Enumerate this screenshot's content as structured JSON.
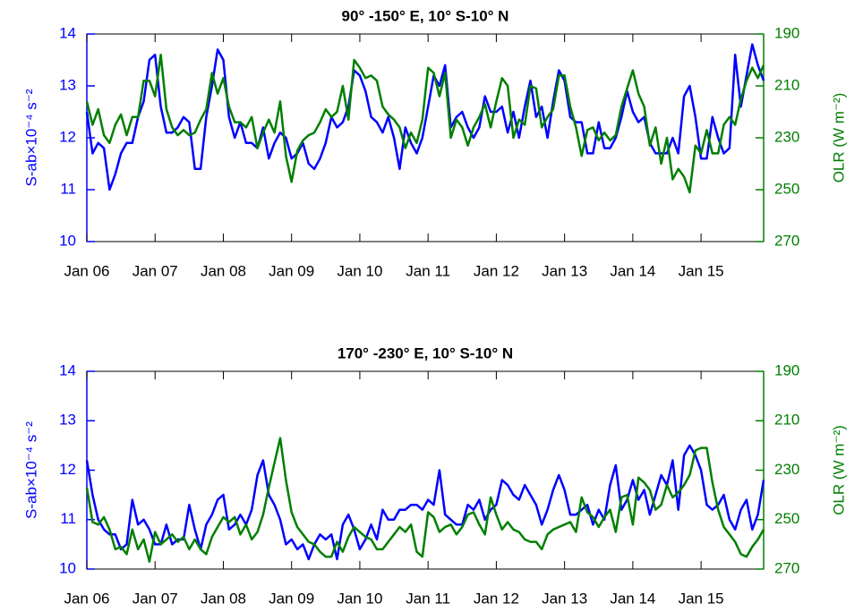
{
  "chart_data": [
    {
      "type": "line",
      "title": "90° -150° E, 10° S-10° N",
      "ylabel": "S-ab×10⁻⁴ s⁻²",
      "y2label": "OLR (W m⁻²)",
      "categories": [
        "Jan 06",
        null,
        null,
        null,
        null,
        null,
        null,
        null,
        null,
        null,
        null,
        null,
        "Jan 07",
        null,
        null,
        null,
        null,
        null,
        null,
        null,
        null,
        null,
        null,
        null,
        "Jan 08",
        null,
        null,
        null,
        null,
        null,
        null,
        null,
        null,
        null,
        null,
        null,
        "Jan 09",
        null,
        null,
        null,
        null,
        null,
        null,
        null,
        null,
        null,
        null,
        null,
        "Jan 10",
        null,
        null,
        null,
        null,
        null,
        null,
        null,
        null,
        null,
        null,
        null,
        "Jan 11",
        null,
        null,
        null,
        null,
        null,
        null,
        null,
        null,
        null,
        null,
        null,
        "Jan 12",
        null,
        null,
        null,
        null,
        null,
        null,
        null,
        null,
        null,
        null,
        null,
        "Jan 13",
        null,
        null,
        null,
        null,
        null,
        null,
        null,
        null,
        null,
        null,
        null,
        "Jan 14",
        null,
        null,
        null,
        null,
        null,
        null,
        null,
        null,
        null,
        null,
        null,
        "Jan 15",
        null,
        null,
        null,
        null,
        null,
        null,
        null,
        null,
        null,
        null,
        null
      ],
      "ylim": [
        10,
        14
      ],
      "yticks": [
        10,
        11,
        12,
        13,
        14
      ],
      "y2lim": [
        270,
        190
      ],
      "y2ticks": [
        190,
        210,
        230,
        250,
        270
      ],
      "series": [
        {
          "name": "S-ab",
          "color": "#0000ff",
          "values": [
            12.5,
            11.7,
            11.9,
            11.8,
            11.0,
            11.3,
            11.7,
            11.9,
            11.9,
            12.4,
            12.7,
            13.5,
            13.6,
            12.6,
            12.1,
            12.1,
            12.2,
            12.4,
            12.3,
            11.4,
            11.4,
            12.4,
            13.0,
            13.7,
            13.5,
            12.4,
            12.0,
            12.3,
            11.9,
            11.9,
            11.8,
            12.2,
            11.6,
            11.9,
            12.1,
            12.0,
            11.6,
            11.7,
            11.9,
            11.5,
            11.4,
            11.6,
            11.9,
            12.4,
            12.2,
            12.3,
            12.6,
            13.3,
            13.2,
            12.9,
            12.4,
            12.3,
            12.1,
            12.4,
            12.0,
            11.4,
            12.2,
            11.9,
            11.7,
            12.0,
            12.6,
            13.2,
            13.0,
            13.4,
            12.2,
            12.4,
            12.5,
            12.2,
            12.0,
            12.2,
            12.8,
            12.5,
            12.5,
            12.6,
            12.1,
            12.5,
            12.0,
            12.6,
            13.1,
            12.4,
            12.6,
            12.0,
            12.7,
            13.3,
            13.1,
            12.4,
            12.3,
            12.3,
            11.7,
            11.7,
            12.3,
            11.8,
            11.8,
            12.0,
            12.4,
            12.9,
            12.5,
            12.3,
            12.4,
            11.9,
            11.7,
            11.7,
            11.7,
            12.0,
            11.7,
            12.8,
            13.0,
            12.4,
            11.6,
            11.6,
            12.4,
            12.0,
            11.7,
            11.8,
            13.6,
            12.6,
            13.2,
            13.8,
            13.4,
            13.1
          ]
        },
        {
          "name": "OLR",
          "color": "#007f00",
          "axis": "y2",
          "values": [
            216,
            225,
            219,
            229,
            232,
            225,
            221,
            229,
            222,
            222,
            208,
            208,
            214,
            198,
            219,
            226,
            229,
            227,
            229,
            228,
            223,
            219,
            205,
            213,
            207,
            218,
            224,
            224,
            226,
            222,
            234,
            228,
            223,
            228,
            216,
            237,
            247,
            235,
            231,
            229,
            228,
            224,
            219,
            222,
            220,
            210,
            223,
            200,
            203,
            207,
            206,
            208,
            218,
            221,
            223,
            226,
            234,
            228,
            232,
            223,
            203,
            205,
            214,
            205,
            230,
            223,
            226,
            233,
            226,
            222,
            217,
            226,
            216,
            207,
            210,
            230,
            223,
            225,
            210,
            211,
            226,
            222,
            219,
            206,
            206,
            218,
            226,
            237,
            227,
            226,
            231,
            228,
            231,
            229,
            218,
            211,
            204,
            213,
            218,
            233,
            226,
            240,
            230,
            246,
            242,
            245,
            251,
            233,
            236,
            227,
            236,
            236,
            225,
            222,
            225,
            215,
            208,
            203,
            207,
            202
          ]
        }
      ]
    },
    {
      "type": "line",
      "title": "170° -230° E, 10° S-10° N",
      "ylabel": "S-ab×10⁻⁴ s⁻²",
      "y2label": "OLR (W m⁻²)",
      "categories": [
        "Jan 06",
        null,
        null,
        null,
        null,
        null,
        null,
        null,
        null,
        null,
        null,
        null,
        "Jan 07",
        null,
        null,
        null,
        null,
        null,
        null,
        null,
        null,
        null,
        null,
        null,
        "Jan 08",
        null,
        null,
        null,
        null,
        null,
        null,
        null,
        null,
        null,
        null,
        null,
        "Jan 09",
        null,
        null,
        null,
        null,
        null,
        null,
        null,
        null,
        null,
        null,
        null,
        "Jan 10",
        null,
        null,
        null,
        null,
        null,
        null,
        null,
        null,
        null,
        null,
        null,
        "Jan 11",
        null,
        null,
        null,
        null,
        null,
        null,
        null,
        null,
        null,
        null,
        null,
        "Jan 12",
        null,
        null,
        null,
        null,
        null,
        null,
        null,
        null,
        null,
        null,
        null,
        "Jan 13",
        null,
        null,
        null,
        null,
        null,
        null,
        null,
        null,
        null,
        null,
        null,
        "Jan 14",
        null,
        null,
        null,
        null,
        null,
        null,
        null,
        null,
        null,
        null,
        null,
        "Jan 15",
        null,
        null,
        null,
        null,
        null,
        null,
        null,
        null,
        null,
        null,
        null
      ],
      "ylim": [
        10,
        14
      ],
      "yticks": [
        10,
        11,
        12,
        13,
        14
      ],
      "y2lim": [
        270,
        190
      ],
      "y2ticks": [
        190,
        210,
        230,
        250,
        270
      ],
      "series": [
        {
          "name": "S-ab",
          "color": "#0000ff",
          "values": [
            12.2,
            11.5,
            11.0,
            10.8,
            10.7,
            10.7,
            10.4,
            10.5,
            11.4,
            10.9,
            11.0,
            10.8,
            10.5,
            10.5,
            10.9,
            10.5,
            10.6,
            10.6,
            11.3,
            10.8,
            10.4,
            10.9,
            11.1,
            11.4,
            11.5,
            10.8,
            10.9,
            11.1,
            10.9,
            11.2,
            11.9,
            12.2,
            11.5,
            11.3,
            11.0,
            10.5,
            10.6,
            10.4,
            10.5,
            10.2,
            10.5,
            10.7,
            10.6,
            10.7,
            10.2,
            10.9,
            11.1,
            10.8,
            10.4,
            10.6,
            10.9,
            10.6,
            11.2,
            11.0,
            11.0,
            11.2,
            11.2,
            11.3,
            11.3,
            11.2,
            11.4,
            11.3,
            12.0,
            11.1,
            11.0,
            10.9,
            10.9,
            11.3,
            11.2,
            11.4,
            11.0,
            11.2,
            11.3,
            11.8,
            11.7,
            11.5,
            11.4,
            11.7,
            11.5,
            11.3,
            10.9,
            11.2,
            11.6,
            11.9,
            11.6,
            11.1,
            11.1,
            11.2,
            11.3,
            10.9,
            11.2,
            11.0,
            11.7,
            12.1,
            11.2,
            11.4,
            11.8,
            11.4,
            11.6,
            11.1,
            11.5,
            11.9,
            11.7,
            12.2,
            11.2,
            12.3,
            12.5,
            12.3,
            12.0,
            11.3,
            11.2,
            11.3,
            11.5,
            11.0,
            10.8,
            11.2,
            11.4,
            10.8,
            11.1,
            11.8
          ]
        },
        {
          "name": "OLR",
          "color": "#007f00",
          "axis": "y2",
          "values": [
            237,
            251,
            252,
            249,
            254,
            262,
            261,
            264,
            254,
            262,
            258,
            267,
            255,
            260,
            258,
            256,
            259,
            257,
            262,
            258,
            262,
            264,
            257,
            253,
            249,
            251,
            249,
            256,
            252,
            258,
            255,
            248,
            237,
            227,
            217,
            234,
            247,
            253,
            256,
            259,
            260,
            263,
            265,
            265,
            259,
            263,
            257,
            253,
            255,
            257,
            258,
            262,
            262,
            259,
            256,
            253,
            255,
            252,
            263,
            265,
            247,
            249,
            255,
            253,
            252,
            256,
            253,
            248,
            247,
            252,
            256,
            241,
            248,
            254,
            251,
            254,
            255,
            258,
            259,
            259,
            262,
            256,
            254,
            253,
            252,
            251,
            255,
            241,
            247,
            249,
            253,
            249,
            246,
            255,
            241,
            240,
            252,
            233,
            235,
            238,
            246,
            244,
            236,
            241,
            239,
            236,
            232,
            222,
            221,
            221,
            235,
            246,
            253,
            256,
            259,
            264,
            265,
            261,
            258,
            254
          ]
        }
      ]
    }
  ]
}
